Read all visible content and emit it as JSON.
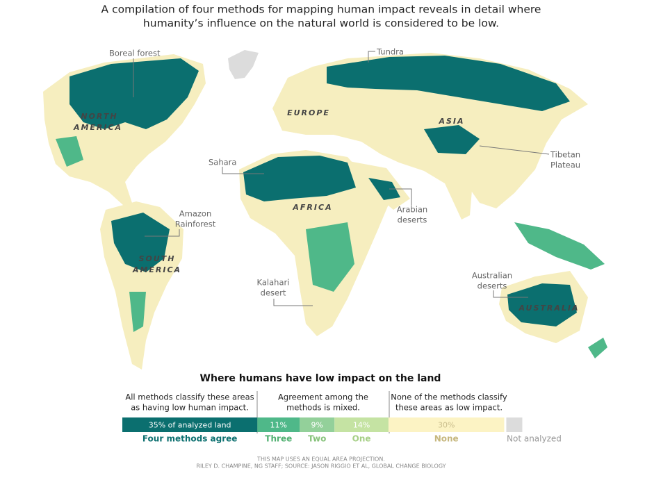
{
  "subtitle_lines": [
    "A compilation of four methods for mapping human impact reveals in detail where",
    "humanity’s influence on the natural world is considered to be low."
  ],
  "map_labels": {
    "boreal": [
      "Boreal forest"
    ],
    "tundra": [
      "Tundra"
    ],
    "tibetan": [
      "Tibetan",
      "Plateau"
    ],
    "sahara": [
      "Sahara"
    ],
    "arabian": [
      "Arabian",
      "deserts"
    ],
    "amazon": [
      "Amazon",
      "Rainforest"
    ],
    "kalahari": [
      "Kalahari",
      "desert"
    ],
    "australian": [
      "Australian",
      "deserts"
    ]
  },
  "continents": {
    "north_america": [
      "NORTH",
      "AMERICA"
    ],
    "europe": [
      "EUROPE"
    ],
    "asia": [
      "ASIA"
    ],
    "africa": [
      "AFRICA"
    ],
    "south_america": [
      "SOUTH",
      "AMERICA"
    ],
    "australia": [
      "AUSTRALIA"
    ]
  },
  "legend": {
    "title": "Where humans have low impact on the land",
    "groups": [
      [
        "All methods classify these areas",
        "as having low human impact."
      ],
      [
        "Agreement among the",
        "methods is mixed."
      ],
      [
        "None of the methods classify",
        "these areas as low impact."
      ]
    ],
    "segments": [
      {
        "name": "Four methods agree",
        "value": 35,
        "value_label": "35% of analyzed land",
        "color": "#0b6f6f",
        "text_color": "#ffffff"
      },
      {
        "name": "Three",
        "value": 11,
        "value_label": "11%",
        "color": "#4fb889",
        "text_color": "#ffffff"
      },
      {
        "name": "Two",
        "value": 9,
        "value_label": "9%",
        "color": "#93d09a",
        "text_color": "#ffffff"
      },
      {
        "name": "One",
        "value": 14,
        "value_label": "14%",
        "color": "#c5e3a3",
        "text_color": "#ffffff"
      },
      {
        "name": "None",
        "value": 30,
        "value_label": "30%",
        "color": "#fcf3c4",
        "text_color": "#c9bd8c"
      }
    ],
    "name_colors": [
      "#0b6f6f",
      "#4fb070",
      "#86c27a",
      "#a6cf86",
      "#c6b77e"
    ],
    "not_analyzed": {
      "name": "Not analyzed",
      "color": "#dcdcdc"
    }
  },
  "footer_lines": [
    "THIS MAP USES AN EQUAL AREA PROJECTION.",
    "RILEY D. CHAMPINE, NG STAFF; SOURCE: JASON RIGGIO ET AL, GLOBAL CHANGE BIOLOGY"
  ]
}
